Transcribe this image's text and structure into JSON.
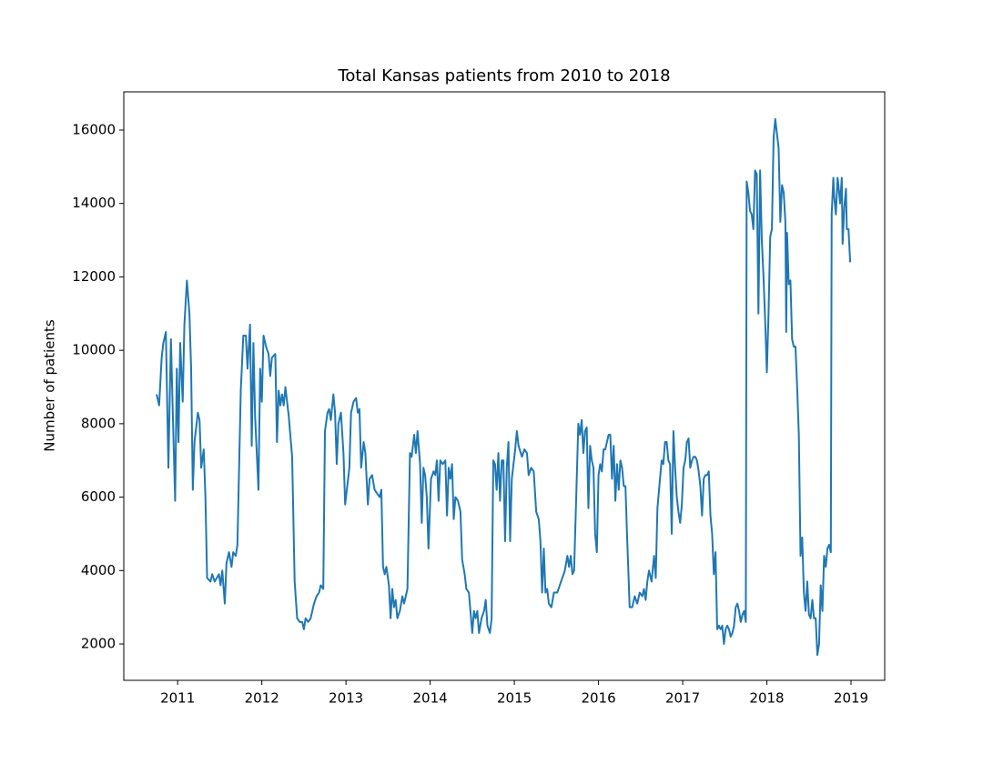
{
  "chart_data": {
    "type": "line",
    "title": "Total Kansas patients from 2010 to 2018",
    "ylabel": "Number of patients",
    "color": "#1f77b4",
    "x": [
      2010.75,
      2010.78,
      2010.81,
      2010.83,
      2010.86,
      2010.89,
      2010.92,
      2010.94,
      2010.97,
      2010.99,
      2011.01,
      2011.03,
      2011.06,
      2011.08,
      2011.11,
      2011.14,
      2011.16,
      2011.18,
      2011.2,
      2011.24,
      2011.26,
      2011.28,
      2011.31,
      2011.33,
      2011.35,
      2011.39,
      2011.41,
      2011.44,
      2011.49,
      2011.51,
      2011.53,
      2011.56,
      2011.58,
      2011.61,
      2011.64,
      2011.66,
      2011.69,
      2011.71,
      2011.75,
      2011.78,
      2011.81,
      2011.83,
      2011.86,
      2011.88,
      2011.9,
      2011.92,
      2011.96,
      2011.98,
      2012.0,
      2012.02,
      2012.05,
      2012.08,
      2012.1,
      2012.12,
      2012.16,
      2012.18,
      2012.2,
      2012.22,
      2012.24,
      2012.26,
      2012.28,
      2012.32,
      2012.36,
      2012.39,
      2012.42,
      2012.45,
      2012.48,
      2012.5,
      2012.52,
      2012.55,
      2012.58,
      2012.62,
      2012.65,
      2012.68,
      2012.7,
      2012.73,
      2012.75,
      2012.78,
      2012.8,
      2012.82,
      2012.85,
      2012.87,
      2012.89,
      2012.91,
      2012.94,
      2012.97,
      2012.99,
      2013.01,
      2013.04,
      2013.06,
      2013.09,
      2013.12,
      2013.14,
      2013.16,
      2013.18,
      2013.21,
      2013.23,
      2013.26,
      2013.28,
      2013.31,
      2013.34,
      2013.37,
      2013.4,
      2013.42,
      2013.44,
      2013.46,
      2013.48,
      2013.51,
      2013.53,
      2013.55,
      2013.57,
      2013.59,
      2013.61,
      2013.64,
      2013.67,
      2013.69,
      2013.73,
      2013.76,
      2013.78,
      2013.81,
      2013.83,
      2013.85,
      2013.88,
      2013.9,
      2013.92,
      2013.94,
      2013.96,
      2013.98,
      2014.01,
      2014.04,
      2014.06,
      2014.08,
      2014.1,
      2014.12,
      2014.15,
      2014.18,
      2014.2,
      2014.22,
      2014.24,
      2014.26,
      2014.28,
      2014.3,
      2014.33,
      2014.36,
      2014.38,
      2014.41,
      2014.43,
      2014.46,
      2014.5,
      2014.52,
      2014.54,
      2014.56,
      2014.58,
      2014.61,
      2014.64,
      2014.66,
      2014.68,
      2014.71,
      2014.73,
      2014.75,
      2014.77,
      2014.79,
      2014.81,
      2014.83,
      2014.85,
      2014.87,
      2014.89,
      2014.91,
      2014.93,
      2014.95,
      2014.97,
      2015.01,
      2015.03,
      2015.05,
      2015.09,
      2015.12,
      2015.15,
      2015.17,
      2015.2,
      2015.23,
      2015.26,
      2015.29,
      2015.31,
      2015.33,
      2015.35,
      2015.37,
      2015.39,
      2015.41,
      2015.44,
      2015.47,
      2015.51,
      2015.54,
      2015.57,
      2015.6,
      2015.63,
      2015.65,
      2015.67,
      2015.69,
      2015.71,
      2015.76,
      2015.78,
      2015.8,
      2015.82,
      2015.84,
      2015.86,
      2015.88,
      2015.9,
      2015.92,
      2015.94,
      2015.96,
      2015.98,
      2016.0,
      2016.02,
      2016.04,
      2016.06,
      2016.08,
      2016.1,
      2016.12,
      2016.14,
      2016.16,
      2016.18,
      2016.2,
      2016.22,
      2016.24,
      2016.26,
      2016.28,
      2016.3,
      2016.32,
      2016.34,
      2016.37,
      2016.4,
      2016.43,
      2016.46,
      2016.49,
      2016.52,
      2016.54,
      2016.56,
      2016.58,
      2016.6,
      2016.63,
      2016.66,
      2016.68,
      2016.7,
      2016.75,
      2016.77,
      2016.79,
      2016.81,
      2016.83,
      2016.85,
      2016.87,
      2016.89,
      2016.91,
      2016.93,
      2016.95,
      2016.97,
      2016.99,
      2017.01,
      2017.03,
      2017.05,
      2017.07,
      2017.09,
      2017.11,
      2017.13,
      2017.15,
      2017.17,
      2017.19,
      2017.21,
      2017.23,
      2017.25,
      2017.27,
      2017.29,
      2017.31,
      2017.33,
      2017.35,
      2017.37,
      2017.39,
      2017.41,
      2017.43,
      2017.45,
      2017.47,
      2017.49,
      2017.51,
      2017.53,
      2017.55,
      2017.57,
      2017.59,
      2017.61,
      2017.63,
      2017.65,
      2017.67,
      2017.69,
      2017.71,
      2017.73,
      2017.75,
      2017.76,
      2017.78,
      2017.8,
      2017.82,
      2017.84,
      2017.86,
      2017.88,
      2017.9,
      2017.92,
      2017.94,
      2017.96,
      2017.98,
      2018.0,
      2018.02,
      2018.04,
      2018.06,
      2018.08,
      2018.1,
      2018.12,
      2018.14,
      2018.16,
      2018.18,
      2018.2,
      2018.22,
      2018.23,
      2018.24,
      2018.26,
      2018.28,
      2018.3,
      2018.32,
      2018.34,
      2018.36,
      2018.38,
      2018.4,
      2018.42,
      2018.44,
      2018.46,
      2018.48,
      2018.5,
      2018.52,
      2018.54,
      2018.56,
      2018.58,
      2018.6,
      2018.62,
      2018.64,
      2018.66,
      2018.68,
      2018.7,
      2018.72,
      2018.74,
      2018.76,
      2018.77,
      2018.79,
      2018.8,
      2018.82,
      2018.84,
      2018.85,
      2018.87,
      2018.89,
      2018.9,
      2018.92,
      2018.94,
      2018.95,
      2018.97,
      2018.99
    ],
    "values": [
      8800,
      8500,
      9800,
      10200,
      10500,
      6800,
      10300,
      8500,
      5900,
      9500,
      7500,
      10200,
      8600,
      10700,
      11900,
      11000,
      9500,
      6200,
      7500,
      8300,
      8100,
      6800,
      7300,
      6000,
      3800,
      3700,
      3900,
      3700,
      3900,
      3600,
      4000,
      3100,
      4200,
      4500,
      4100,
      4500,
      4400,
      4700,
      8900,
      10400,
      10400,
      9500,
      10700,
      7400,
      10200,
      8200,
      6200,
      9500,
      8600,
      10400,
      10100,
      9900,
      9300,
      9800,
      9900,
      7500,
      8900,
      8500,
      8800,
      8500,
      9000,
      8200,
      7100,
      3700,
      2700,
      2600,
      2600,
      2400,
      2700,
      2600,
      2700,
      3100,
      3300,
      3400,
      3600,
      3500,
      7800,
      8300,
      8400,
      8100,
      8800,
      8300,
      6900,
      8000,
      8300,
      7200,
      5800,
      6200,
      6800,
      8300,
      8600,
      8700,
      8300,
      8400,
      6800,
      7500,
      7200,
      5800,
      6500,
      6600,
      6200,
      6100,
      6000,
      6200,
      4100,
      3900,
      4100,
      3600,
      2700,
      3500,
      3000,
      3200,
      2700,
      2900,
      3300,
      3100,
      3500,
      7200,
      7100,
      7700,
      7200,
      7800,
      6900,
      5300,
      6800,
      6600,
      6000,
      4600,
      6500,
      6700,
      6600,
      7000,
      5900,
      7000,
      6900,
      7000,
      5500,
      6800,
      6500,
      6900,
      5400,
      6000,
      5900,
      5600,
      4300,
      3900,
      3500,
      3400,
      2300,
      2900,
      2700,
      2900,
      2300,
      2700,
      2900,
      3200,
      2500,
      2300,
      2700,
      7000,
      6900,
      6200,
      7200,
      5900,
      7000,
      7000,
      4800,
      6800,
      7500,
      4800,
      6500,
      7300,
      7800,
      7400,
      7100,
      7300,
      7200,
      6600,
      6800,
      6700,
      5600,
      5400,
      4800,
      3400,
      4600,
      3400,
      3500,
      3100,
      3000,
      3400,
      3400,
      3600,
      3800,
      4000,
      4400,
      4100,
      4400,
      3900,
      4000,
      8000,
      7700,
      8100,
      7200,
      7800,
      7900,
      5700,
      7400,
      7000,
      6800,
      5000,
      4500,
      6600,
      6900,
      6700,
      7300,
      7300,
      7500,
      7700,
      7700,
      6500,
      7400,
      5900,
      6900,
      6200,
      7000,
      6800,
      6300,
      6300,
      4900,
      3000,
      3000,
      3300,
      3100,
      3400,
      3300,
      3500,
      3200,
      3700,
      4000,
      3700,
      4400,
      3800,
      5700,
      7000,
      6900,
      7500,
      7500,
      7000,
      6900,
      5000,
      7800,
      6800,
      6000,
      5600,
      5300,
      5800,
      6800,
      7000,
      7500,
      7600,
      6800,
      7000,
      7100,
      7100,
      7000,
      6700,
      6300,
      5500,
      6500,
      6600,
      6600,
      6700,
      5500,
      5000,
      3900,
      4500,
      2400,
      2500,
      2400,
      2500,
      2000,
      2400,
      2500,
      2400,
      2200,
      2300,
      2500,
      3000,
      3100,
      2900,
      2600,
      2800,
      2900,
      2600,
      14600,
      14300,
      13800,
      13700,
      13300,
      14900,
      14800,
      11000,
      14900,
      13000,
      12000,
      10800,
      9400,
      11000,
      13100,
      13300,
      15800,
      16300,
      15900,
      15500,
      13500,
      14500,
      14300,
      13500,
      10500,
      13200,
      11800,
      11900,
      10300,
      10100,
      10100,
      9000,
      7700,
      4400,
      4900,
      3400,
      2900,
      3700,
      2800,
      2700,
      3200,
      2700,
      2700,
      1700,
      2000,
      3600,
      2900,
      4400,
      4100,
      4600,
      4700,
      4500,
      13700,
      14700,
      14200,
      13700,
      14700,
      14500,
      14000,
      14700,
      12900,
      13900,
      14400,
      13300,
      13300,
      12400
    ],
    "xlim": [
      2010.36,
      2019.4
    ],
    "xticks": [
      2011,
      2012,
      2013,
      2014,
      2015,
      2016,
      2017,
      2018,
      2019
    ],
    "ylim": [
      1010,
      17040
    ],
    "yticks": [
      2000,
      4000,
      6000,
      8000,
      10000,
      12000,
      14000,
      16000
    ]
  }
}
